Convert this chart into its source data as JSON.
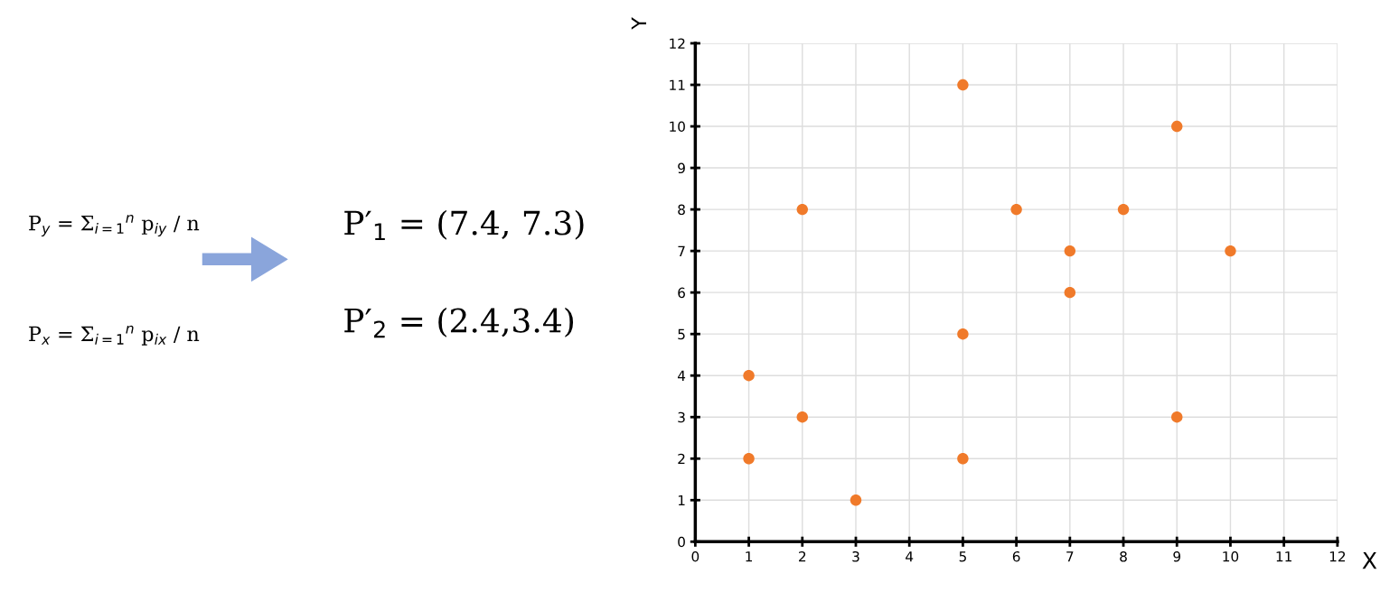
{
  "chart_data": {
    "type": "scatter",
    "xlabel": "X",
    "ylabel": "Y",
    "x": [
      1,
      1,
      2,
      2,
      3,
      5,
      5,
      5,
      6,
      7,
      7,
      8,
      9,
      9,
      10
    ],
    "series": [
      {
        "color": "#f07a2a",
        "values": [
          4,
          2,
          8,
          3,
          1,
          11,
          5,
          2,
          8,
          7,
          6,
          8,
          10,
          3,
          7
        ]
      }
    ],
    "xlim": [
      0,
      12
    ],
    "ylim": [
      0,
      12
    ],
    "xticks": [
      0,
      1,
      2,
      3,
      4,
      5,
      6,
      7,
      8,
      9,
      10,
      11,
      12
    ],
    "yticks": [
      0,
      1,
      2,
      3,
      4,
      5,
      6,
      7,
      8,
      9,
      10,
      11,
      12
    ],
    "grid": true,
    "marker": "circle",
    "legend": false,
    "annotations": [
      "P$_{y}$ = Σ$_{i=1}$$^{n}$ p$_{iy}$ / n",
      "P$_{x}$ = Σ$_{i=1}$$^{n}$ p$_{ix}$ / n",
      "P′$_{1}$ = (7.4, 7.3)",
      "P′$_{2}$ = (2.4,3.4)"
    ]
  }
}
